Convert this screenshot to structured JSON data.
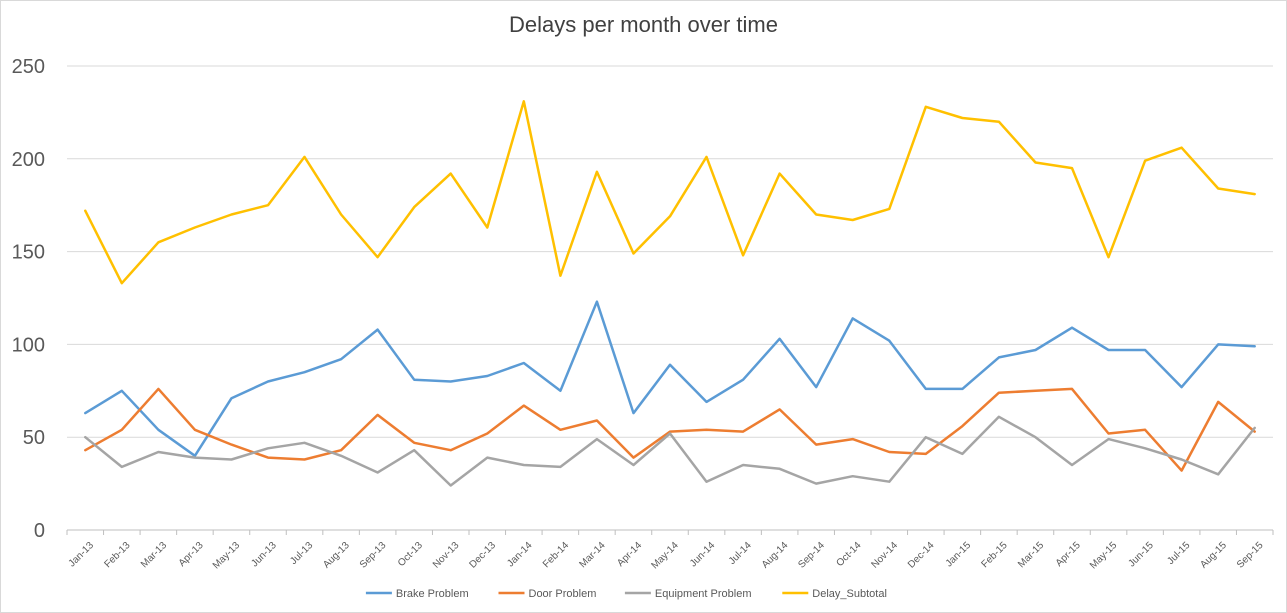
{
  "chart_data": {
    "type": "line",
    "title": "Delays per month over time",
    "xlabel": "",
    "ylabel": "",
    "ylim": [
      0,
      250
    ],
    "yticks": [
      0,
      50,
      100,
      150,
      200,
      250
    ],
    "grid": "horizontal",
    "legend_position": "bottom",
    "categories": [
      "Jan-13",
      "Feb-13",
      "Mar-13",
      "Apr-13",
      "May-13",
      "Jun-13",
      "Jul-13",
      "Aug-13",
      "Sep-13",
      "Oct-13",
      "Nov-13",
      "Dec-13",
      "Jan-14",
      "Feb-14",
      "Mar-14",
      "Apr-14",
      "May-14",
      "Jun-14",
      "Jul-14",
      "Aug-14",
      "Sep-14",
      "Oct-14",
      "Nov-14",
      "Dec-14",
      "Jan-15",
      "Feb-15",
      "Mar-15",
      "Apr-15",
      "May-15",
      "Jun-15",
      "Jul-15",
      "Aug-15",
      "Sep-15"
    ],
    "series": [
      {
        "name": "Brake Problem",
        "color": "#5b9bd5",
        "values": [
          63,
          75,
          54,
          40,
          71,
          80,
          85,
          92,
          108,
          81,
          80,
          83,
          90,
          75,
          123,
          63,
          89,
          69,
          81,
          103,
          77,
          114,
          102,
          76,
          76,
          93,
          97,
          109,
          97,
          97,
          77,
          100,
          99
        ]
      },
      {
        "name": "Door Problem",
        "color": "#ed7d31",
        "values": [
          43,
          54,
          76,
          54,
          46,
          39,
          38,
          43,
          62,
          47,
          43,
          52,
          67,
          54,
          59,
          39,
          53,
          54,
          53,
          65,
          46,
          49,
          42,
          41,
          56,
          74,
          75,
          76,
          52,
          54,
          32,
          69,
          53
        ]
      },
      {
        "name": "Equipment Problem",
        "color": "#a5a5a5",
        "values": [
          50,
          34,
          42,
          39,
          38,
          44,
          47,
          40,
          31,
          43,
          24,
          39,
          35,
          34,
          49,
          35,
          52,
          26,
          35,
          33,
          25,
          29,
          26,
          50,
          41,
          61,
          50,
          35,
          49,
          44,
          38,
          30,
          55
        ]
      },
      {
        "name": "Delay_Subtotal",
        "color": "#ffc000",
        "values": [
          172,
          133,
          155,
          163,
          170,
          175,
          201,
          170,
          147,
          174,
          192,
          163,
          231,
          137,
          193,
          149,
          169,
          201,
          148,
          192,
          170,
          167,
          173,
          228,
          222,
          220,
          198,
          195,
          147,
          199,
          206,
          184,
          181
        ]
      }
    ]
  }
}
